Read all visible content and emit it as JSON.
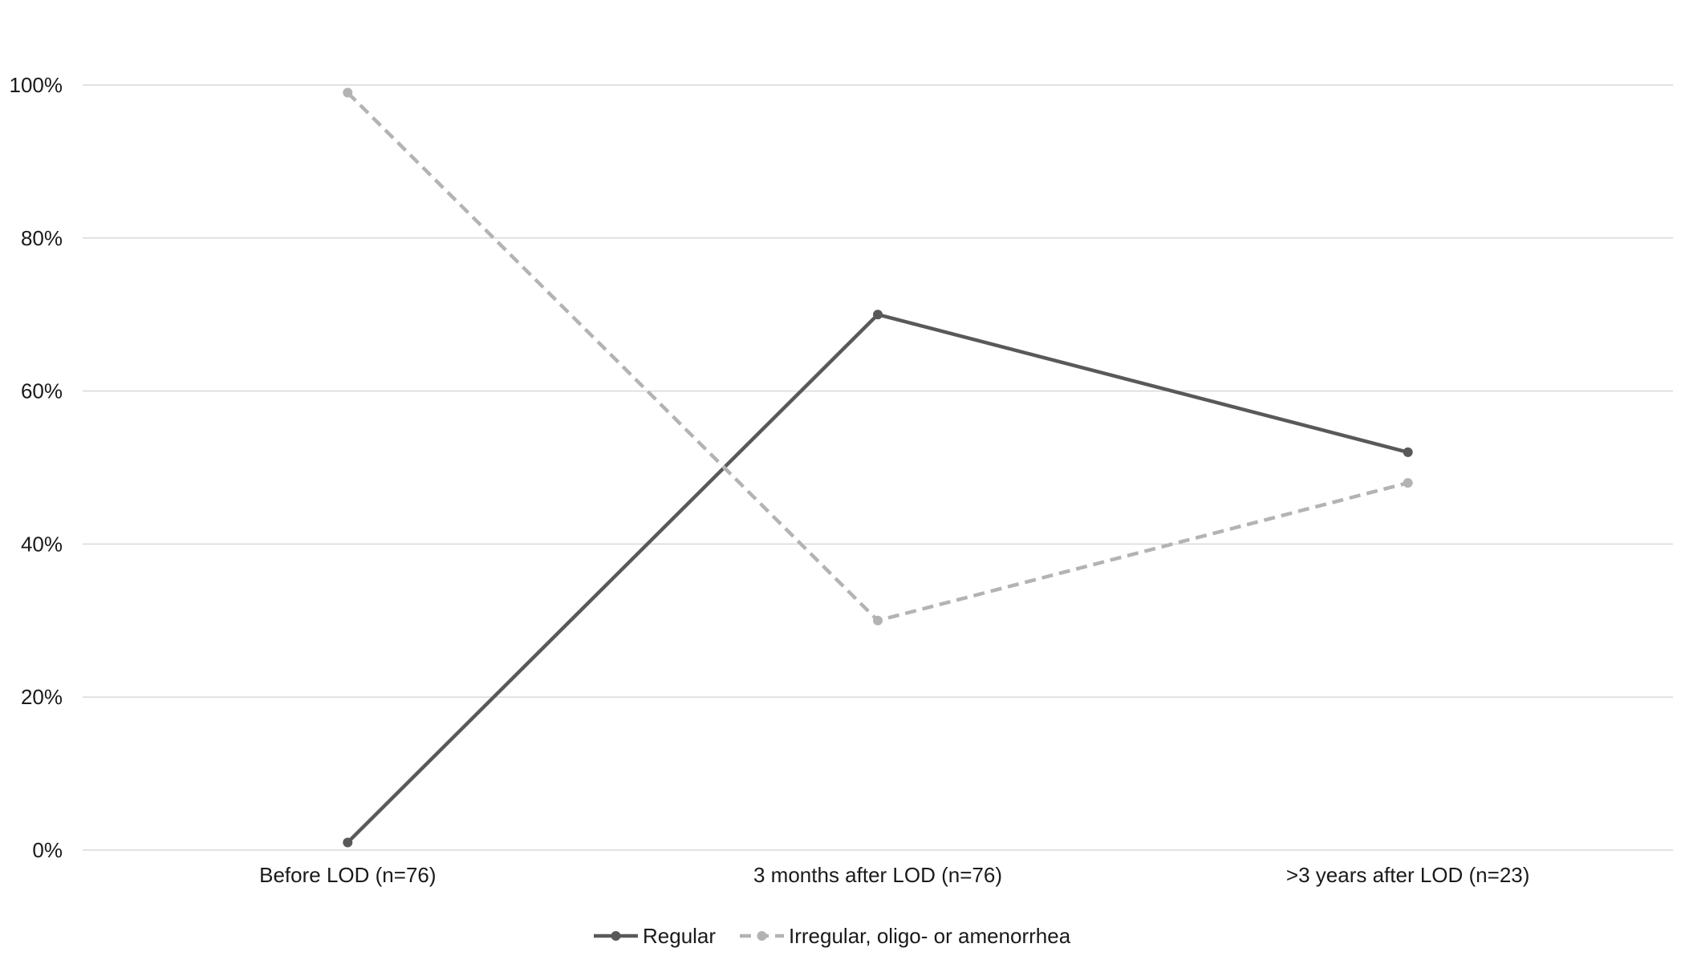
{
  "chart_data": {
    "type": "line",
    "categories": [
      "Before LOD (n=76)",
      "3 months after LOD (n=76)",
      ">3 years after LOD (n=23)"
    ],
    "series": [
      {
        "name": "Regular",
        "values": [
          1,
          70,
          52
        ],
        "color": "#595959",
        "dash": false
      },
      {
        "name": "Irregular, oligo- or amenorrhea",
        "values": [
          99,
          30,
          48
        ],
        "color": "#b3b3b3",
        "dash": true
      }
    ],
    "yticks": [
      "0%",
      "20%",
      "40%",
      "60%",
      "80%",
      "100%"
    ],
    "ylim": [
      0,
      100
    ],
    "grid": true,
    "legend_position": "bottom-center",
    "gridline_color": "#d9d9d9"
  }
}
